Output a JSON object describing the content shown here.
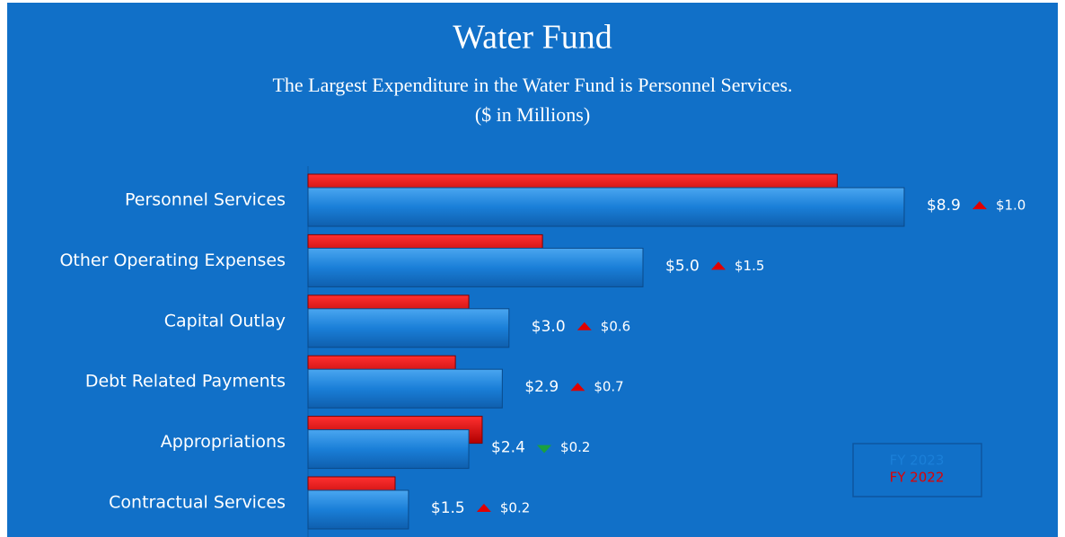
{
  "chart_data": {
    "type": "bar",
    "orientation": "horizontal",
    "title": "Water Fund",
    "subtitle": "The Largest Expenditure in the Water Fund is Personnel Services.",
    "unit_note": "($ in Millions)",
    "categories": [
      "Personnel Services",
      "Other Operating Expenses",
      "Capital Outlay",
      "Debt Related Payments",
      "Appropriations",
      "Contractual Services"
    ],
    "series": [
      {
        "name": "FY 2023",
        "color": "#1a7fd8",
        "values": [
          8.9,
          5.0,
          3.0,
          2.9,
          2.4,
          1.5
        ],
        "value_labels": [
          "$8.9",
          "$5.0",
          "$3.0",
          "$2.9",
          "$2.4",
          "$1.5"
        ]
      },
      {
        "name": "FY 2022",
        "color": "#e00000",
        "values": [
          7.9,
          3.5,
          2.4,
          2.2,
          2.6,
          1.3
        ]
      }
    ],
    "changes": [
      1.0,
      1.5,
      0.6,
      0.7,
      -0.2,
      0.2
    ],
    "change_labels": [
      "$1.0",
      "$1.5",
      "$0.6",
      "$0.7",
      "$0.2",
      "$0.2"
    ],
    "change_colors": {
      "up": "#e00000",
      "down": "#1aa040"
    },
    "xlim": [
      0,
      10
    ],
    "legend": "lower right"
  }
}
